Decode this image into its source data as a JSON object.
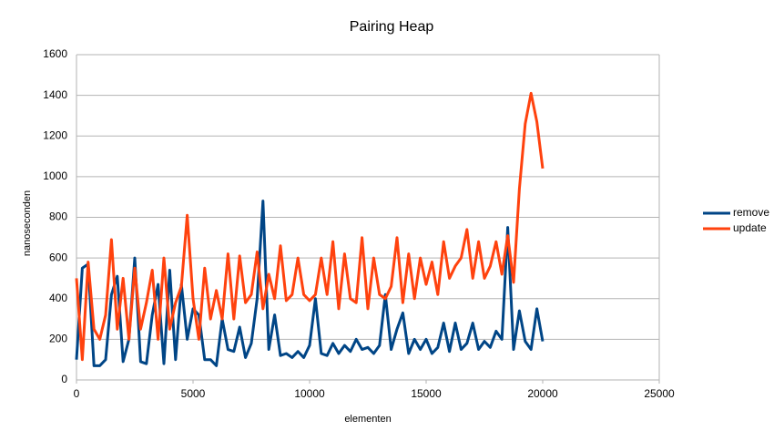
{
  "chart_data": {
    "type": "line",
    "title": "Pairing Heap",
    "x_label": "elementen",
    "y_label": "nanoseconden",
    "x": [
      0,
      250,
      500,
      750,
      1000,
      1250,
      1500,
      1750,
      2000,
      2250,
      2500,
      2750,
      3000,
      3250,
      3500,
      3750,
      4000,
      4250,
      4500,
      4750,
      5000,
      5250,
      5500,
      5750,
      6000,
      6250,
      6500,
      6750,
      7000,
      7250,
      7500,
      7750,
      8000,
      8250,
      8500,
      8750,
      9000,
      9250,
      9500,
      9750,
      10000,
      10250,
      10500,
      10750,
      11000,
      11250,
      11500,
      11750,
      12000,
      12250,
      12500,
      12750,
      13000,
      13250,
      13500,
      13750,
      14000,
      14250,
      14500,
      14750,
      15000,
      15250,
      15500,
      15750,
      16000,
      16250,
      16500,
      16750,
      17000,
      17250,
      17500,
      17750,
      18000,
      18250,
      18500,
      18750,
      19000,
      19250,
      19500,
      19750,
      20000
    ],
    "series": [
      {
        "name": "remove",
        "color": "#004586",
        "values": [
          100,
          550,
          570,
          70,
          70,
          100,
          420,
          510,
          90,
          200,
          600,
          90,
          80,
          320,
          470,
          80,
          540,
          100,
          470,
          200,
          350,
          320,
          100,
          100,
          70,
          300,
          150,
          140,
          260,
          110,
          180,
          400,
          880,
          150,
          320,
          120,
          130,
          110,
          140,
          110,
          170,
          400,
          130,
          120,
          180,
          130,
          170,
          140,
          200,
          150,
          160,
          130,
          170,
          420,
          150,
          250,
          330,
          130,
          200,
          150,
          200,
          130,
          160,
          280,
          140,
          280,
          150,
          180,
          280,
          150,
          190,
          160,
          240,
          200,
          750,
          150,
          340,
          190,
          150,
          350,
          190
        ]
      },
      {
        "name": "update",
        "color": "#ff420e",
        "values": [
          500,
          100,
          580,
          250,
          200,
          320,
          690,
          250,
          500,
          200,
          550,
          250,
          380,
          540,
          200,
          600,
          250,
          380,
          460,
          810,
          400,
          200,
          550,
          300,
          440,
          300,
          620,
          300,
          610,
          380,
          420,
          630,
          350,
          520,
          400,
          660,
          390,
          420,
          600,
          420,
          390,
          420,
          600,
          420,
          680,
          350,
          620,
          400,
          380,
          700,
          350,
          600,
          420,
          400,
          460,
          700,
          380,
          620,
          400,
          600,
          470,
          580,
          420,
          680,
          500,
          560,
          600,
          740,
          500,
          680,
          500,
          560,
          680,
          520,
          710,
          480,
          940,
          1260,
          1410,
          1270,
          1040
        ]
      }
    ],
    "xlim": [
      0,
      25000
    ],
    "xticks": [
      0,
      5000,
      10000,
      15000,
      20000,
      25000
    ],
    "ylim": [
      0,
      1600
    ],
    "yticks": [
      0,
      200,
      400,
      600,
      800,
      1000,
      1200,
      1400,
      1600
    ],
    "grid": true,
    "legend": "right"
  }
}
